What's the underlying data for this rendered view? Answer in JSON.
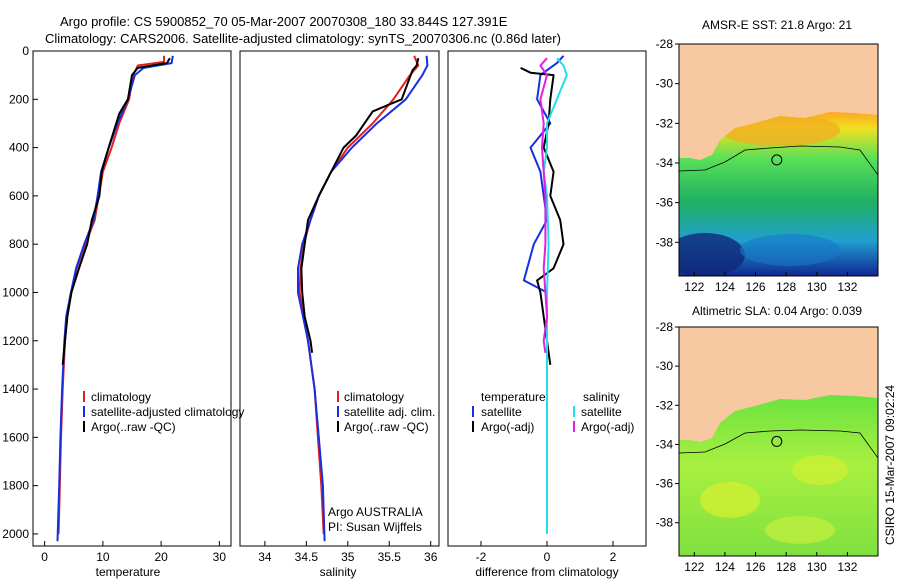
{
  "title": {
    "line1": "Argo profile: CS 5900852_70 05-Mar-2007 20070308_180 33.844S 127.391E",
    "line2": "Climatology: CARS2006. Satellite-adjusted climatology: synTS_20070306.nc (0.86d later)"
  },
  "side_caption": "CSIRO 15-Mar-2007 09:02:24",
  "colors": {
    "climatology": "#e02020",
    "satellite": "#1530e0",
    "argo": "#000000",
    "sat_salinity": "#20e0e8",
    "argo_salinity_adj": "#e020e0",
    "land": "#f8c8a0"
  },
  "chart_data": [
    {
      "type": "line",
      "name": "temperature-profile",
      "xlabel": "temperature",
      "xlim": [
        -2,
        32
      ],
      "ylim": [
        2050,
        0
      ],
      "xticks": [
        "0",
        "10",
        "20",
        "30"
      ],
      "xtick_values": [
        0,
        10,
        20,
        30
      ],
      "yticks": [
        "0",
        "200",
        "400",
        "600",
        "800",
        "1000",
        "1200",
        "1400",
        "1600",
        "1800",
        "2000"
      ],
      "ytick_values": [
        0,
        200,
        400,
        600,
        800,
        1000,
        1200,
        1400,
        1600,
        1800,
        2000
      ],
      "legend": [
        "climatology",
        "satellite-adjusted climatology",
        "Argo(..raw -QC)"
      ],
      "series": [
        {
          "name": "climatology",
          "color": "#e02020",
          "points": [
            [
              20.5,
              20
            ],
            [
              20.5,
              45
            ],
            [
              16,
              60
            ],
            [
              15.2,
              100
            ],
            [
              14.5,
              200
            ],
            [
              12.8,
              300
            ],
            [
              11.5,
              400
            ],
            [
              10,
              500
            ],
            [
              9.3,
              600
            ],
            [
              8.6,
              700
            ],
            [
              7,
              800
            ],
            [
              5.5,
              900
            ],
            [
              4.6,
              1000
            ],
            [
              3.8,
              1100
            ],
            [
              3.5,
              1200
            ],
            [
              3.1,
              1400
            ],
            [
              2.8,
              1600
            ],
            [
              2.6,
              1800
            ],
            [
              2.4,
              2000
            ]
          ]
        },
        {
          "name": "satellite-adjusted climatology",
          "color": "#1530e0",
          "points": [
            [
              22,
              20
            ],
            [
              21.8,
              50
            ],
            [
              17,
              70
            ],
            [
              15.5,
              100
            ],
            [
              14.3,
              200
            ],
            [
              12.5,
              300
            ],
            [
              11,
              400
            ],
            [
              9.7,
              500
            ],
            [
              9.1,
              600
            ],
            [
              8.4,
              700
            ],
            [
              6.8,
              800
            ],
            [
              5.4,
              900
            ],
            [
              4.5,
              1000
            ],
            [
              3.7,
              1100
            ],
            [
              3.4,
              1200
            ],
            [
              3,
              1400
            ],
            [
              2.7,
              1600
            ],
            [
              2.5,
              1800
            ],
            [
              2.2,
              2030
            ]
          ]
        },
        {
          "name": "Argo(..raw -QC)",
          "color": "#000000",
          "points": [
            [
              21.5,
              30
            ],
            [
              21,
              50
            ],
            [
              16,
              70
            ],
            [
              15,
              100
            ],
            [
              14.3,
              200
            ],
            [
              12.8,
              260
            ],
            [
              11,
              400
            ],
            [
              9.8,
              500
            ],
            [
              9.4,
              600
            ],
            [
              8.1,
              700
            ],
            [
              7.3,
              800
            ],
            [
              5.9,
              900
            ],
            [
              4.6,
              1000
            ],
            [
              3.9,
              1100
            ],
            [
              3.5,
              1200
            ],
            [
              3.1,
              1300
            ]
          ]
        }
      ]
    },
    {
      "type": "line",
      "name": "salinity-profile",
      "xlabel": "salinity",
      "xlim": [
        33.7,
        36.1
      ],
      "ylim": [
        2050,
        0
      ],
      "xticks": [
        "34",
        "34.5",
        "35",
        "35.5",
        "36"
      ],
      "xtick_values": [
        34,
        34.5,
        35,
        35.5,
        36
      ],
      "legend": [
        "climatology",
        "satellite adj. clim.",
        "Argo(..raw -QC)"
      ],
      "annotations": [
        "Argo AUSTRALIA",
        "PI: Susan Wijffels"
      ],
      "series": [
        {
          "name": "climatology",
          "color": "#e02020",
          "points": [
            [
              35.8,
              20
            ],
            [
              35.85,
              60
            ],
            [
              35.75,
              100
            ],
            [
              35.55,
              200
            ],
            [
              35.3,
              300
            ],
            [
              35,
              400
            ],
            [
              34.8,
              500
            ],
            [
              34.65,
              600
            ],
            [
              34.55,
              700
            ],
            [
              34.47,
              800
            ],
            [
              34.43,
              900
            ],
            [
              34.42,
              1000
            ],
            [
              34.47,
              1100
            ],
            [
              34.52,
              1200
            ],
            [
              34.6,
              1400
            ],
            [
              34.64,
              1600
            ],
            [
              34.68,
              1800
            ],
            [
              34.71,
              2000
            ]
          ]
        },
        {
          "name": "satellite adj. clim.",
          "color": "#1530e0",
          "points": [
            [
              35.95,
              20
            ],
            [
              35.96,
              60
            ],
            [
              35.9,
              100
            ],
            [
              35.7,
              200
            ],
            [
              35.35,
              300
            ],
            [
              35.05,
              400
            ],
            [
              34.8,
              500
            ],
            [
              34.65,
              600
            ],
            [
              34.55,
              700
            ],
            [
              34.45,
              800
            ],
            [
              34.4,
              900
            ],
            [
              34.4,
              1000
            ],
            [
              34.46,
              1100
            ],
            [
              34.52,
              1200
            ],
            [
              34.6,
              1400
            ],
            [
              34.65,
              1600
            ],
            [
              34.7,
              1800
            ],
            [
              34.72,
              2030
            ]
          ]
        },
        {
          "name": "Argo(..raw -QC)",
          "color": "#000000",
          "points": [
            [
              35.85,
              30
            ],
            [
              35.83,
              60
            ],
            [
              35.78,
              80
            ],
            [
              35.65,
              200
            ],
            [
              35.3,
              250
            ],
            [
              35.1,
              350
            ],
            [
              34.95,
              400
            ],
            [
              34.8,
              500
            ],
            [
              34.65,
              600
            ],
            [
              34.52,
              700
            ],
            [
              34.48,
              800
            ],
            [
              34.44,
              900
            ],
            [
              34.45,
              1000
            ],
            [
              34.48,
              1100
            ],
            [
              34.55,
              1200
            ],
            [
              34.57,
              1250
            ]
          ]
        }
      ]
    },
    {
      "type": "line",
      "name": "difference-from-climatology",
      "xlabel": "difference from climatology",
      "xlim": [
        -3,
        3
      ],
      "ylim": [
        2050,
        0
      ],
      "xticks": [
        "-2",
        "0",
        "2"
      ],
      "xtick_values": [
        -2,
        0,
        2
      ],
      "legend": {
        "temperature_header": "temperature",
        "salinity_header": "salinity",
        "entries": [
          "satellite",
          "Argo(-adj)",
          "satellite",
          "Argo(-adj)"
        ]
      },
      "series": [
        {
          "name": "temperature satellite",
          "color": "#1530e0",
          "points": [
            [
              0.5,
              20
            ],
            [
              0.3,
              50
            ],
            [
              -0.2,
              100
            ],
            [
              -0.3,
              200
            ],
            [
              0.1,
              300
            ],
            [
              -0.5,
              400
            ],
            [
              -0.2,
              500
            ],
            [
              -0.1,
              600
            ],
            [
              0,
              700
            ],
            [
              -0.4,
              800
            ],
            [
              -0.6,
              900
            ],
            [
              -0.7,
              950
            ],
            [
              0,
              1000
            ],
            [
              0,
              1100
            ],
            [
              0,
              1200
            ],
            [
              0,
              1300
            ]
          ]
        },
        {
          "name": "temperature Argo(-adj)",
          "color": "#000000",
          "points": [
            [
              -0.8,
              70
            ],
            [
              -0.5,
              90
            ],
            [
              0.2,
              100
            ],
            [
              0.1,
              200
            ],
            [
              0.05,
              300
            ],
            [
              -0.1,
              400
            ],
            [
              0.2,
              500
            ],
            [
              0.1,
              600
            ],
            [
              0.4,
              700
            ],
            [
              0.5,
              800
            ],
            [
              0.2,
              900
            ],
            [
              -0.3,
              950
            ],
            [
              -0.2,
              1000
            ],
            [
              -0.1,
              1100
            ],
            [
              0,
              1200
            ],
            [
              0.1,
              1300
            ]
          ]
        },
        {
          "name": "salinity satellite",
          "color": "#20e0e8",
          "points": [
            [
              0.3,
              30
            ],
            [
              0.5,
              60
            ],
            [
              0.6,
              100
            ],
            [
              0.3,
              200
            ],
            [
              0,
              300
            ],
            [
              0,
              400
            ],
            [
              -0.1,
              500
            ],
            [
              0,
              600
            ],
            [
              0.05,
              800
            ],
            [
              0,
              1000
            ],
            [
              0,
              1200
            ],
            [
              0,
              1400
            ],
            [
              0,
              1600
            ],
            [
              0,
              2000
            ]
          ]
        },
        {
          "name": "salinity Argo(-adj)",
          "color": "#e020e0",
          "points": [
            [
              0,
              30
            ],
            [
              -0.2,
              60
            ],
            [
              0,
              100
            ],
            [
              -0.2,
              200
            ],
            [
              -0.1,
              300
            ],
            [
              -0.15,
              400
            ],
            [
              -0.05,
              600
            ],
            [
              -0.05,
              800
            ],
            [
              -0.1,
              900
            ],
            [
              -0.05,
              1000
            ],
            [
              0,
              1100
            ],
            [
              -0.1,
              1200
            ],
            [
              -0.05,
              1250
            ]
          ]
        }
      ]
    },
    {
      "type": "heatmap",
      "name": "sst-map",
      "title": "AMSR-E SST: 21.8 Argo: 21",
      "xlim": [
        121,
        134
      ],
      "ylim": [
        -39.7,
        -28
      ],
      "xticks": [
        "122",
        "124",
        "126",
        "128",
        "130",
        "132"
      ],
      "xtick_values": [
        122,
        124,
        126,
        128,
        130,
        132
      ],
      "yticks": [
        "-28",
        "-30",
        "-32",
        "-34",
        "-36",
        "-38"
      ],
      "ytick_values": [
        -28,
        -30,
        -32,
        -34,
        -36,
        -38
      ],
      "float_position": [
        127.391,
        -33.844
      ]
    },
    {
      "type": "heatmap",
      "name": "sla-map",
      "title": "Altimetric SLA: 0.04 Argo: 0.039",
      "xlim": [
        121,
        134
      ],
      "ylim": [
        -39.7,
        -28
      ],
      "xticks": [
        "122",
        "124",
        "126",
        "128",
        "130",
        "132"
      ],
      "xtick_values": [
        122,
        124,
        126,
        128,
        130,
        132
      ],
      "yticks": [
        "-28",
        "-30",
        "-32",
        "-34",
        "-36",
        "-38"
      ],
      "ytick_values": [
        -28,
        -30,
        -32,
        -34,
        -36,
        -38
      ],
      "float_position": [
        127.391,
        -33.844
      ]
    }
  ]
}
